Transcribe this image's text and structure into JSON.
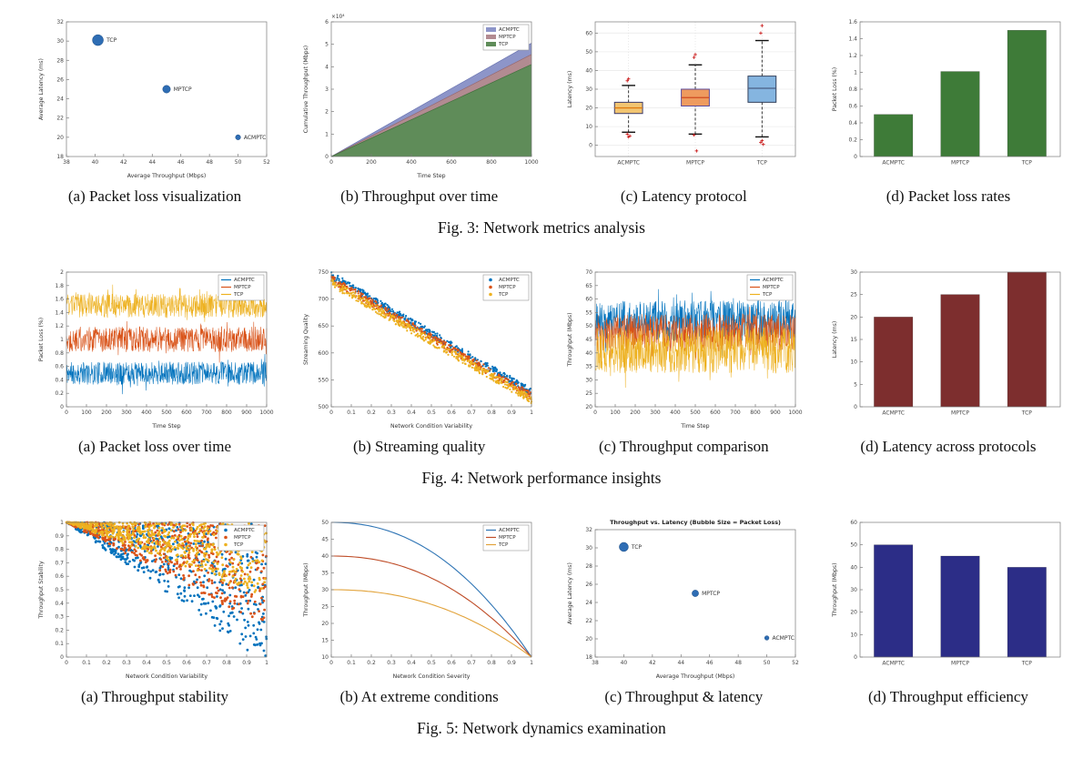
{
  "figures": [
    {
      "fig_caption": "Fig. 3: Network metrics analysis",
      "subfigs": [
        {
          "caption": "(a) Packet loss visualization",
          "chart_index": 0
        },
        {
          "caption": "(b) Throughput over time",
          "chart_index": 1
        },
        {
          "caption": "(c) Latency protocol",
          "chart_index": 2
        },
        {
          "caption": "(d) Packet loss rates",
          "chart_index": 3
        }
      ]
    },
    {
      "fig_caption": "Fig. 4: Network performance insights",
      "subfigs": [
        {
          "caption": "(a) Packet loss over time",
          "chart_index": 4
        },
        {
          "caption": "(b) Streaming quality",
          "chart_index": 5
        },
        {
          "caption": "(c) Throughput comparison",
          "chart_index": 6
        },
        {
          "caption": "(d) Latency across protocols",
          "chart_index": 7
        }
      ]
    },
    {
      "fig_caption": "Fig. 5: Network dynamics examination",
      "subfigs": [
        {
          "caption": "(a) Throughput stability",
          "chart_index": 8
        },
        {
          "caption": "(b) At extreme conditions",
          "chart_index": 9
        },
        {
          "caption": "(c) Throughput & latency",
          "chart_index": 10
        },
        {
          "caption": "(d) Throughput efficiency",
          "chart_index": 11
        }
      ]
    }
  ],
  "chart_data": [
    {
      "type": "scatter",
      "variant": "scatter_labeled",
      "xlabel": "Average Throughput (Mbps)",
      "ylabel": "Average Latency (ms)",
      "xlim": [
        38,
        52
      ],
      "ylim": [
        18,
        32
      ],
      "xticks": [
        38,
        40,
        42,
        44,
        46,
        48,
        50,
        52
      ],
      "yticks": [
        18,
        20,
        22,
        24,
        26,
        28,
        30,
        32
      ],
      "color": "#2e6db4",
      "points": [
        {
          "label": "TCP",
          "x": 40.2,
          "y": 30.1,
          "r": 6
        },
        {
          "label": "MPTCP",
          "x": 45,
          "y": 25,
          "r": 4.2
        },
        {
          "label": "ACMPTC",
          "x": 50,
          "y": 20,
          "r": 2.8
        }
      ]
    },
    {
      "type": "area",
      "variant": "area",
      "xlabel": "Time Step",
      "ylabel": "Cumulative Throughput (Mbps)",
      "xlim": [
        0,
        1000
      ],
      "ylim": [
        0,
        6
      ],
      "mult": "×10⁴",
      "xticks": [
        0,
        200,
        400,
        600,
        800,
        1000
      ],
      "yticks": [
        0,
        1,
        2,
        3,
        4,
        5,
        6
      ],
      "series": [
        {
          "name": "ACMPTC",
          "end": 5.05,
          "color": "#8d95c9",
          "edge": "#6a74b0"
        },
        {
          "name": "MPTCP",
          "end": 4.55,
          "color": "#b28b91",
          "edge": "#96686f"
        },
        {
          "name": "TCP",
          "end": 4.1,
          "color": "#5f8c59",
          "edge": "#44703f"
        }
      ],
      "legend": {
        "style": "patch",
        "items": [
          {
            "label": "ACMPTC",
            "color": "#8d95c9"
          },
          {
            "label": "MPTCP",
            "color": "#b28b91"
          },
          {
            "label": "TCP",
            "color": "#5f8c59"
          }
        ]
      }
    },
    {
      "type": "box",
      "variant": "box",
      "ylabel": "Latency (ms)",
      "ylim": [
        -6,
        66
      ],
      "yticks": [
        0,
        10,
        20,
        30,
        40,
        50,
        60
      ],
      "categories": [
        "ACMPTC",
        "MPTCP",
        "TCP"
      ],
      "grid": true,
      "boxes": [
        {
          "q1": 17,
          "median": 20,
          "q3": 23,
          "wlo": 7,
          "whi": 32,
          "outliers": [
            34.5,
            35.5,
            5,
            6,
            4.5
          ],
          "fill": "#f2c572",
          "edge": "#3b3b6b",
          "mcolor": "#e07b10"
        },
        {
          "q1": 21,
          "median": 25.5,
          "q3": 30,
          "wlo": 6,
          "whi": 43,
          "outliers": [
            47,
            48.5,
            -3,
            5.5
          ],
          "fill": "#ee9b5f",
          "edge": "#5b4a9b",
          "mcolor": "#cf4a1f"
        },
        {
          "q1": 23,
          "median": 30.5,
          "q3": 37,
          "wlo": 4.5,
          "whi": 56,
          "outliers": [
            60,
            64,
            0.5,
            1.5,
            2.5
          ],
          "fill": "#85b5e0",
          "edge": "#33415c",
          "mcolor": "#4a5f82"
        }
      ]
    },
    {
      "type": "bar",
      "variant": "bar",
      "ylabel": "Packet Loss (%)",
      "categories": [
        "ACMPTC",
        "MPTCP",
        "TCP"
      ],
      "values": [
        0.5,
        1.01,
        1.5
      ],
      "ylim": [
        0,
        1.6
      ],
      "yticks": [
        0,
        0.2,
        0.4,
        0.6,
        0.8,
        1,
        1.2,
        1.4,
        1.6
      ],
      "color": "#3e7b38"
    },
    {
      "type": "line",
      "variant": "noisy",
      "xlabel": "Time Step",
      "ylabel": "Packet Loss (%)",
      "xlim": [
        0,
        1000
      ],
      "ylim": [
        0,
        2
      ],
      "xticks": [
        0,
        100,
        200,
        300,
        400,
        500,
        600,
        700,
        800,
        900,
        1000
      ],
      "yticks": [
        0,
        0.2,
        0.4,
        0.6,
        0.8,
        1,
        1.2,
        1.4,
        1.6,
        1.8,
        2
      ],
      "n": 650,
      "series": [
        {
          "name": "ACMPTC",
          "mean": 0.5,
          "amp": 0.17,
          "color": "#0072BD",
          "seed": 11
        },
        {
          "name": "MPTCP",
          "mean": 1.0,
          "amp": 0.19,
          "color": "#D95319",
          "seed": 22
        },
        {
          "name": "TCP",
          "mean": 1.5,
          "amp": 0.18,
          "color": "#EDB120",
          "seed": 33
        }
      ],
      "legend": {
        "style": "line",
        "items": [
          {
            "label": "ACMPTC",
            "color": "#0072BD"
          },
          {
            "label": "MPTCP",
            "color": "#D95319"
          },
          {
            "label": "TCP",
            "color": "#EDB120"
          }
        ]
      }
    },
    {
      "type": "scatter",
      "variant": "band",
      "xlabel": "Network Condition Variability",
      "ylabel": "Streaming Quality",
      "xlim": [
        0,
        1
      ],
      "ylim": [
        500,
        750
      ],
      "xticks": [
        0,
        0.1,
        0.2,
        0.3,
        0.4,
        0.5,
        0.6,
        0.7,
        0.8,
        0.9,
        1
      ],
      "yticks": [
        500,
        550,
        600,
        650,
        700,
        750
      ],
      "base0": 737,
      "base1": 520,
      "noise": 7,
      "n": 450,
      "series": [
        {
          "name": "ACMPTC",
          "offset": 7,
          "color": "#0072BD",
          "seed": 41
        },
        {
          "name": "MPTCP",
          "offset": 0,
          "color": "#D95319",
          "seed": 42
        },
        {
          "name": "TCP",
          "offset": -7,
          "color": "#EDB120",
          "seed": 43
        }
      ],
      "legend": {
        "style": "dot",
        "items": [
          {
            "label": "ACMPTC",
            "color": "#0072BD"
          },
          {
            "label": "MPTCP",
            "color": "#D95319"
          },
          {
            "label": "TCP",
            "color": "#EDB120"
          }
        ]
      }
    },
    {
      "type": "line",
      "variant": "noisy",
      "xlabel": "Time Step",
      "ylabel": "Throughput (Mbps)",
      "xlim": [
        0,
        1000
      ],
      "ylim": [
        20,
        70
      ],
      "xticks": [
        0,
        100,
        200,
        300,
        400,
        500,
        600,
        700,
        800,
        900,
        1000
      ],
      "yticks": [
        20,
        25,
        30,
        35,
        40,
        45,
        50,
        55,
        60,
        65,
        70
      ],
      "n": 650,
      "series": [
        {
          "name": "ACMPTC",
          "mean": 52,
          "amp": 7.5,
          "color": "#0072BD",
          "seed": 51
        },
        {
          "name": "MPTCP",
          "mean": 47.5,
          "amp": 7,
          "color": "#D95319",
          "seed": 52
        },
        {
          "name": "TCP",
          "mean": 41,
          "amp": 8.5,
          "color": "#EDB120",
          "seed": 53
        }
      ],
      "legend": {
        "style": "line",
        "items": [
          {
            "label": "ACMPTC",
            "color": "#0072BD"
          },
          {
            "label": "MPTCP",
            "color": "#D95319"
          },
          {
            "label": "TCP",
            "color": "#EDB120"
          }
        ]
      }
    },
    {
      "type": "bar",
      "variant": "bar",
      "ylabel": "Latency (ms)",
      "categories": [
        "ACMPTC",
        "MPTCP",
        "TCP"
      ],
      "values": [
        20,
        25,
        30
      ],
      "ylim": [
        0,
        30
      ],
      "yticks": [
        0,
        5,
        10,
        15,
        20,
        25,
        30
      ],
      "color": "#7d2e2e"
    },
    {
      "type": "scatter",
      "variant": "cloud",
      "xlabel": "Network Condition Variability",
      "ylabel": "Throughput Stability",
      "xlim": [
        0,
        1
      ],
      "ylim": [
        0,
        1
      ],
      "xticks": [
        0,
        0.1,
        0.2,
        0.3,
        0.4,
        0.5,
        0.6,
        0.7,
        0.8,
        0.9,
        1
      ],
      "yticks": [
        0,
        0.1,
        0.2,
        0.3,
        0.4,
        0.5,
        0.6,
        0.7,
        0.8,
        0.9,
        1
      ],
      "n": 600,
      "series": [
        {
          "name": "ACMPTC",
          "c": 1.05,
          "color": "#0072BD",
          "seed": 61
        },
        {
          "name": "MPTCP",
          "c": 0.78,
          "color": "#D95319",
          "seed": 62
        },
        {
          "name": "TCP",
          "c": 0.55,
          "color": "#EDB120",
          "seed": 63
        }
      ],
      "legend": {
        "style": "dot",
        "items": [
          {
            "label": "ACMPTC",
            "color": "#0072BD"
          },
          {
            "label": "MPTCP",
            "color": "#D95319"
          },
          {
            "label": "TCP",
            "color": "#EDB120"
          }
        ]
      }
    },
    {
      "type": "line",
      "variant": "curves",
      "xlabel": "Network Condition Severity",
      "ylabel": "Throughput (Mbps)",
      "xlim": [
        0,
        1
      ],
      "ylim": [
        10,
        50
      ],
      "xticks": [
        0,
        0.1,
        0.2,
        0.3,
        0.4,
        0.5,
        0.6,
        0.7,
        0.8,
        0.9,
        1
      ],
      "yticks": [
        10,
        15,
        20,
        25,
        30,
        35,
        40,
        45,
        50
      ],
      "pow": 2.2,
      "end": 10,
      "series": [
        {
          "name": "ACMPTC",
          "start": 50,
          "color": "#2f75b5"
        },
        {
          "name": "MPTCP",
          "start": 40,
          "color": "#bf4d28"
        },
        {
          "name": "TCP",
          "start": 30,
          "color": "#e2a33b"
        }
      ],
      "legend": {
        "style": "line",
        "items": [
          {
            "label": "ACMPTC",
            "color": "#2f75b5"
          },
          {
            "label": "MPTCP",
            "color": "#bf4d28"
          },
          {
            "label": "TCP",
            "color": "#e2a33b"
          }
        ]
      }
    },
    {
      "type": "scatter",
      "variant": "scatter_labeled",
      "title": "Throughput vs. Latency (Bubble Size = Packet Loss)",
      "xlabel": "Average Throughput (Mbps)",
      "ylabel": "Average Latency (ms)",
      "xlim": [
        38,
        52
      ],
      "ylim": [
        18,
        32
      ],
      "xticks": [
        38,
        40,
        42,
        44,
        46,
        48,
        50,
        52
      ],
      "yticks": [
        18,
        20,
        22,
        24,
        26,
        28,
        30,
        32
      ],
      "color": "#2e6db4",
      "points": [
        {
          "label": "TCP",
          "x": 40,
          "y": 30.1,
          "r": 5
        },
        {
          "label": "MPTCP",
          "x": 45,
          "y": 25,
          "r": 3.6
        },
        {
          "label": "ACMPTC",
          "x": 50,
          "y": 20.1,
          "r": 2.4
        }
      ]
    },
    {
      "type": "bar",
      "variant": "bar",
      "ylabel": "Throughput (Mbps)",
      "categories": [
        "ACMPTC",
        "MPTCP",
        "TCP"
      ],
      "values": [
        50,
        45,
        40
      ],
      "ylim": [
        0,
        60
      ],
      "yticks": [
        0,
        10,
        20,
        30,
        40,
        50,
        60
      ],
      "color": "#2c2d87"
    }
  ]
}
